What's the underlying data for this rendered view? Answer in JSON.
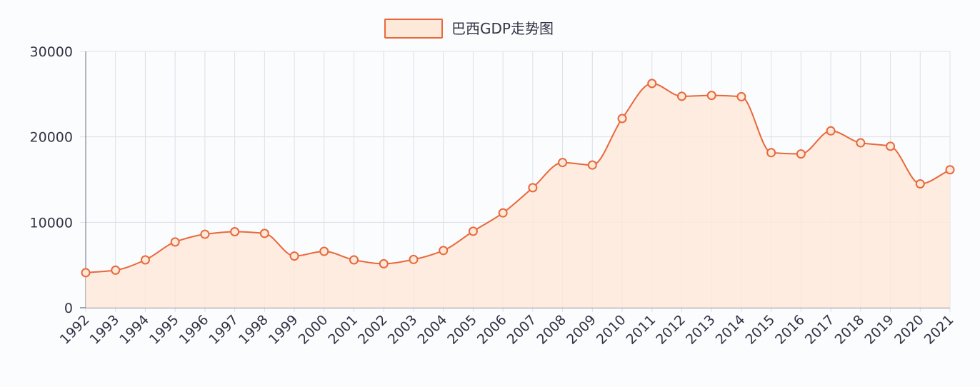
{
  "chart_data": {
    "type": "area",
    "legend": {
      "label": "巴西GDP走势图",
      "position": "top-center"
    },
    "x": [
      "1992",
      "1993",
      "1994",
      "1995",
      "1996",
      "1997",
      "1998",
      "1999",
      "2000",
      "2001",
      "2002",
      "2003",
      "2004",
      "2005",
      "2006",
      "2007",
      "2008",
      "2009",
      "2010",
      "2011",
      "2012",
      "2013",
      "2014",
      "2015",
      "2016",
      "2017",
      "2018",
      "2019",
      "2020",
      "2021"
    ],
    "series": [
      {
        "name": "巴西GDP走势图",
        "values": [
          4100,
          4400,
          5600,
          7700,
          8600,
          8900,
          8700,
          6050,
          6600,
          5600,
          5150,
          5650,
          6700,
          8950,
          11100,
          14050,
          17000,
          16700,
          22150,
          26250,
          24750,
          24850,
          24700,
          18150,
          18000,
          20700,
          19300,
          18900,
          14500,
          16150
        ]
      }
    ],
    "yticks": [
      "0",
      "10000",
      "20000",
      "30000"
    ],
    "ylim": [
      0,
      30000
    ],
    "grid": true,
    "colors": {
      "line": "#e8683c",
      "fill": "#fde9d9",
      "grid": "#dcdfe8",
      "axis": "#6b6f80"
    }
  }
}
